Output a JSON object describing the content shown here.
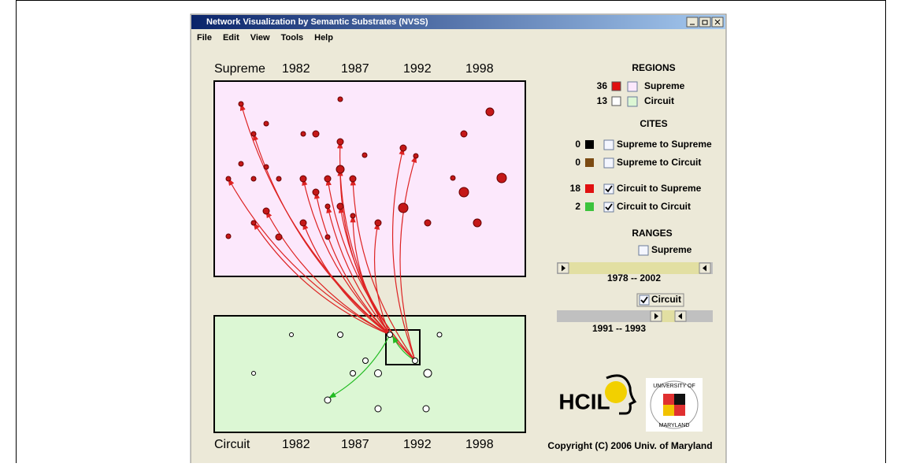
{
  "window": {
    "title": "Network Visualization by Semantic Substrates (NVSS)"
  },
  "menu": [
    "File",
    "Edit",
    "View",
    "Tools",
    "Help"
  ],
  "substrates": [
    {
      "name": "Supreme",
      "years": [
        "1982",
        "1987",
        "1992",
        "1998"
      ]
    },
    {
      "name": "Circuit",
      "years": [
        "1982",
        "1987",
        "1992",
        "1998"
      ]
    }
  ],
  "panel": {
    "regions": {
      "title": "REGIONS",
      "items": [
        {
          "count": 36,
          "label": "Supreme"
        },
        {
          "count": 13,
          "label": "Circuit"
        }
      ]
    },
    "cites": {
      "title": "CITES",
      "items": [
        {
          "count": 0,
          "label": "Supreme to Supreme",
          "checked": false
        },
        {
          "count": 0,
          "label": "Supreme to Circuit",
          "checked": false
        },
        {
          "count": 18,
          "label": "Circuit to Supreme",
          "checked": true
        },
        {
          "count": 2,
          "label": "Circuit to Circuit",
          "checked": true
        }
      ]
    },
    "ranges": {
      "title": "RANGES",
      "items": [
        {
          "label": "Supreme",
          "checked": false,
          "range": "1978  --  2002"
        },
        {
          "label": "Circuit",
          "checked": true,
          "range": "1991  --  1993"
        }
      ]
    }
  },
  "logos": {
    "hcil": "HCIL",
    "seal": [
      "UNIVERSITY OF",
      "MARYLAND"
    ]
  },
  "copyright": "Copyright (C) 2006  Univ. of Maryland"
}
